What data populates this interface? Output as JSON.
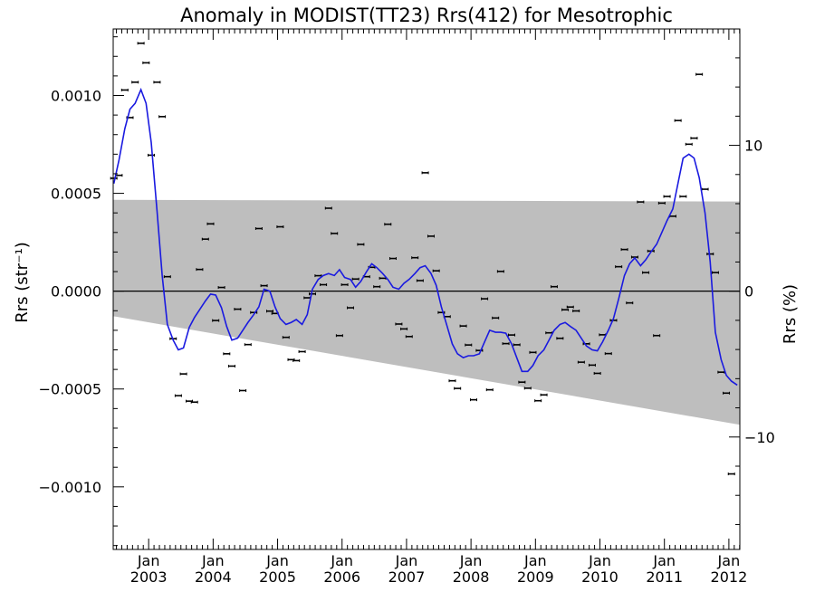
{
  "chart_data": {
    "type": "scatter",
    "title": "Anomaly in MODIST(TT23) Rrs(412) for Mesotrophic",
    "ylabel_left": "Rrs (str⁻¹)",
    "ylabel_right": "Rrs (%)",
    "xlim": [
      2002.45,
      2012.17
    ],
    "ylim": [
      -0.00132,
      0.00134
    ],
    "y2lim": [
      -17.71,
      17.98
    ],
    "grid": false,
    "zero_line": 0,
    "x_ticks": [
      {
        "x": 2003.0,
        "line1": "Jan",
        "line2": "2003"
      },
      {
        "x": 2004.0,
        "line1": "Jan",
        "line2": "2004"
      },
      {
        "x": 2005.0,
        "line1": "Jan",
        "line2": "2005"
      },
      {
        "x": 2006.0,
        "line1": "Jan",
        "line2": "2006"
      },
      {
        "x": 2007.0,
        "line1": "Jan",
        "line2": "2007"
      },
      {
        "x": 2008.0,
        "line1": "Jan",
        "line2": "2008"
      },
      {
        "x": 2009.0,
        "line1": "Jan",
        "line2": "2009"
      },
      {
        "x": 2010.0,
        "line1": "Jan",
        "line2": "2010"
      },
      {
        "x": 2011.0,
        "line1": "Jan",
        "line2": "2011"
      },
      {
        "x": 2012.0,
        "line1": "Jan",
        "line2": "2012"
      }
    ],
    "y_ticks": [
      {
        "v": 0.001,
        "label": "0.0010"
      },
      {
        "v": 0.0005,
        "label": "0.0005"
      },
      {
        "v": 0.0,
        "label": "0.0000"
      },
      {
        "v": -0.0005,
        "label": "−0.0005"
      },
      {
        "v": -0.001,
        "label": "−0.0010"
      }
    ],
    "y2_ticks": [
      {
        "v": 10,
        "label": "10"
      },
      {
        "v": 0,
        "label": "0"
      },
      {
        "v": -10,
        "label": "−10"
      }
    ],
    "band": {
      "upper": [
        [
          2002.45,
          0.000467
        ],
        [
          2012.17,
          0.000458
        ]
      ],
      "lower": [
        [
          2002.45,
          -0.000128
        ],
        [
          2012.17,
          -0.000683
        ]
      ],
      "color": "#bebebe"
    },
    "series": [
      {
        "type": "scatter",
        "color": "#000000",
        "error": 6e-06,
        "points": [
          [
            2002.46,
            0.000577
          ],
          [
            2002.54,
            0.000592
          ],
          [
            2002.63,
            0.001028
          ],
          [
            2002.71,
            0.000887
          ],
          [
            2002.79,
            0.001068
          ],
          [
            2002.88,
            0.001267
          ],
          [
            2002.96,
            0.001167
          ],
          [
            2003.04,
            0.000695
          ],
          [
            2003.13,
            0.001068
          ],
          [
            2003.21,
            0.000892
          ],
          [
            2003.29,
            7.4e-05
          ],
          [
            2003.38,
            -0.000243
          ],
          [
            2003.46,
            -0.000534
          ],
          [
            2003.54,
            -0.000423
          ],
          [
            2003.63,
            -0.000562
          ],
          [
            2003.71,
            -0.000567
          ],
          [
            2003.79,
            0.000111
          ],
          [
            2003.88,
            0.000266
          ],
          [
            2003.96,
            0.000344
          ],
          [
            2004.04,
            -0.00015
          ],
          [
            2004.13,
            1.9e-05
          ],
          [
            2004.21,
            -0.00032
          ],
          [
            2004.29,
            -0.000383
          ],
          [
            2004.38,
            -9.2e-05
          ],
          [
            2004.46,
            -0.000508
          ],
          [
            2004.54,
            -0.000273
          ],
          [
            2004.63,
            -0.000109
          ],
          [
            2004.71,
            0.00032
          ],
          [
            2004.79,
            2.8e-05
          ],
          [
            2004.88,
            -0.000102
          ],
          [
            2004.96,
            -0.000114
          ],
          [
            2005.04,
            0.000329
          ],
          [
            2005.13,
            -0.000236
          ],
          [
            2005.21,
            -0.00035
          ],
          [
            2005.29,
            -0.000355
          ],
          [
            2005.38,
            -0.000309
          ],
          [
            2005.46,
            -3.4e-05
          ],
          [
            2005.54,
            -1.4e-05
          ],
          [
            2005.63,
            7.9e-05
          ],
          [
            2005.71,
            3.3e-05
          ],
          [
            2005.79,
            0.000424
          ],
          [
            2005.88,
            0.000295
          ],
          [
            2005.96,
            -0.000227
          ],
          [
            2006.04,
            3.3e-05
          ],
          [
            2006.13,
            -8.5e-05
          ],
          [
            2006.21,
            6.2e-05
          ],
          [
            2006.29,
            0.000239
          ],
          [
            2006.38,
            7.4e-05
          ],
          [
            2006.46,
            0.000122
          ],
          [
            2006.54,
            2.3e-05
          ],
          [
            2006.63,
            6.6e-05
          ],
          [
            2006.71,
            0.000342
          ],
          [
            2006.79,
            0.000167
          ],
          [
            2006.88,
            -0.000168
          ],
          [
            2006.96,
            -0.000193
          ],
          [
            2007.04,
            -0.000232
          ],
          [
            2007.13,
            0.000171
          ],
          [
            2007.21,
            5.4e-05
          ],
          [
            2007.29,
            0.000605
          ],
          [
            2007.38,
            0.000281
          ],
          [
            2007.46,
            0.000104
          ],
          [
            2007.54,
            -0.000109
          ],
          [
            2007.63,
            -0.00013
          ],
          [
            2007.71,
            -0.000458
          ],
          [
            2007.79,
            -0.000497
          ],
          [
            2007.88,
            -0.000178
          ],
          [
            2007.96,
            -0.000275
          ],
          [
            2008.04,
            -0.000555
          ],
          [
            2008.13,
            -0.000303
          ],
          [
            2008.21,
            -3.9e-05
          ],
          [
            2008.29,
            -0.000504
          ],
          [
            2008.38,
            -0.000137
          ],
          [
            2008.46,
            0.000101
          ],
          [
            2008.54,
            -0.000268
          ],
          [
            2008.63,
            -0.000224
          ],
          [
            2008.71,
            -0.000274
          ],
          [
            2008.79,
            -0.000465
          ],
          [
            2008.88,
            -0.000496
          ],
          [
            2008.96,
            -0.000313
          ],
          [
            2009.04,
            -0.00056
          ],
          [
            2009.13,
            -0.00053
          ],
          [
            2009.21,
            -0.000213
          ],
          [
            2009.29,
            2.3e-05
          ],
          [
            2009.38,
            -0.000241
          ],
          [
            2009.46,
            -9.5e-05
          ],
          [
            2009.54,
            -8.1e-05
          ],
          [
            2009.63,
            -0.000101
          ],
          [
            2009.71,
            -0.000363
          ],
          [
            2009.79,
            -0.000269
          ],
          [
            2009.88,
            -0.000378
          ],
          [
            2009.96,
            -0.00042
          ],
          [
            2010.04,
            -0.000223
          ],
          [
            2010.13,
            -0.000319
          ],
          [
            2010.21,
            -0.000149
          ],
          [
            2010.29,
            0.000125
          ],
          [
            2010.38,
            0.000213
          ],
          [
            2010.46,
            -6e-05
          ],
          [
            2010.54,
            0.000174
          ],
          [
            2010.63,
            0.000456
          ],
          [
            2010.71,
            9.5e-05
          ],
          [
            2010.79,
            0.000205
          ],
          [
            2010.88,
            -0.000227
          ],
          [
            2010.96,
            0.00045
          ],
          [
            2011.04,
            0.000484
          ],
          [
            2011.13,
            0.000383
          ],
          [
            2011.21,
            0.000872
          ],
          [
            2011.29,
            0.000484
          ],
          [
            2011.38,
            0.000751
          ],
          [
            2011.46,
            0.000782
          ],
          [
            2011.54,
            0.001108
          ],
          [
            2011.63,
            0.000521
          ],
          [
            2011.71,
            0.00019
          ],
          [
            2011.79,
            9.5e-05
          ],
          [
            2011.88,
            -0.000414
          ],
          [
            2011.96,
            -0.000521
          ],
          [
            2012.04,
            -0.000934
          ]
        ]
      },
      {
        "type": "line",
        "color": "#1a1ae0",
        "points": [
          [
            2002.46,
            0.00055
          ],
          [
            2002.54,
            0.00067
          ],
          [
            2002.63,
            0.00083
          ],
          [
            2002.71,
            0.00093
          ],
          [
            2002.79,
            0.00096
          ],
          [
            2002.88,
            0.00103
          ],
          [
            2002.96,
            0.00096
          ],
          [
            2003.04,
            0.00076
          ],
          [
            2003.13,
            0.00041
          ],
          [
            2003.21,
            8e-05
          ],
          [
            2003.29,
            -0.00017
          ],
          [
            2003.38,
            -0.00025
          ],
          [
            2003.46,
            -0.0003
          ],
          [
            2003.54,
            -0.00029
          ],
          [
            2003.63,
            -0.000185
          ],
          [
            2003.71,
            -0.000135
          ],
          [
            2003.79,
            -9.5e-05
          ],
          [
            2003.88,
            -5e-05
          ],
          [
            2003.96,
            -1.5e-05
          ],
          [
            2004.04,
            -2e-05
          ],
          [
            2004.13,
            -8.5e-05
          ],
          [
            2004.21,
            -0.00018
          ],
          [
            2004.29,
            -0.00025
          ],
          [
            2004.38,
            -0.00024
          ],
          [
            2004.46,
            -0.0002
          ],
          [
            2004.54,
            -0.00016
          ],
          [
            2004.63,
            -0.00012
          ],
          [
            2004.71,
            -8e-05
          ],
          [
            2004.79,
            1e-05
          ],
          [
            2004.88,
            0.0
          ],
          [
            2004.96,
            -8e-05
          ],
          [
            2005.04,
            -0.00014
          ],
          [
            2005.13,
            -0.00017
          ],
          [
            2005.21,
            -0.00016
          ],
          [
            2005.29,
            -0.000145
          ],
          [
            2005.38,
            -0.00017
          ],
          [
            2005.46,
            -0.00012
          ],
          [
            2005.54,
            1e-05
          ],
          [
            2005.63,
            6e-05
          ],
          [
            2005.71,
            8e-05
          ],
          [
            2005.79,
            9e-05
          ],
          [
            2005.88,
            8e-05
          ],
          [
            2005.96,
            0.00011
          ],
          [
            2006.04,
            7e-05
          ],
          [
            2006.13,
            6e-05
          ],
          [
            2006.21,
            2e-05
          ],
          [
            2006.29,
            5e-05
          ],
          [
            2006.38,
            0.0001
          ],
          [
            2006.46,
            0.00014
          ],
          [
            2006.54,
            0.00012
          ],
          [
            2006.63,
            9e-05
          ],
          [
            2006.71,
            6e-05
          ],
          [
            2006.79,
            2e-05
          ],
          [
            2006.88,
            1e-05
          ],
          [
            2006.96,
            4e-05
          ],
          [
            2007.04,
            6e-05
          ],
          [
            2007.13,
            9e-05
          ],
          [
            2007.21,
            0.00012
          ],
          [
            2007.29,
            0.00013
          ],
          [
            2007.38,
            9e-05
          ],
          [
            2007.46,
            3e-05
          ],
          [
            2007.54,
            -8e-05
          ],
          [
            2007.63,
            -0.00018
          ],
          [
            2007.71,
            -0.00027
          ],
          [
            2007.79,
            -0.00032
          ],
          [
            2007.88,
            -0.00034
          ],
          [
            2007.96,
            -0.00033
          ],
          [
            2008.04,
            -0.00033
          ],
          [
            2008.13,
            -0.00032
          ],
          [
            2008.21,
            -0.00026
          ],
          [
            2008.29,
            -0.0002
          ],
          [
            2008.38,
            -0.00021
          ],
          [
            2008.46,
            -0.00021
          ],
          [
            2008.54,
            -0.000215
          ],
          [
            2008.63,
            -0.00027
          ],
          [
            2008.71,
            -0.00034
          ],
          [
            2008.79,
            -0.00041
          ],
          [
            2008.88,
            -0.00041
          ],
          [
            2008.96,
            -0.00038
          ],
          [
            2009.04,
            -0.00033
          ],
          [
            2009.13,
            -0.0003
          ],
          [
            2009.21,
            -0.00025
          ],
          [
            2009.29,
            -0.0002
          ],
          [
            2009.38,
            -0.00017
          ],
          [
            2009.46,
            -0.00016
          ],
          [
            2009.54,
            -0.00018
          ],
          [
            2009.63,
            -0.0002
          ],
          [
            2009.71,
            -0.00024
          ],
          [
            2009.79,
            -0.00028
          ],
          [
            2009.88,
            -0.0003
          ],
          [
            2009.96,
            -0.000305
          ],
          [
            2010.04,
            -0.00026
          ],
          [
            2010.13,
            -0.0002
          ],
          [
            2010.21,
            -0.00014
          ],
          [
            2010.29,
            -4e-05
          ],
          [
            2010.38,
            8e-05
          ],
          [
            2010.46,
            0.00014
          ],
          [
            2010.54,
            0.00017
          ],
          [
            2010.63,
            0.00013
          ],
          [
            2010.71,
            0.00016
          ],
          [
            2010.79,
            0.0002
          ],
          [
            2010.88,
            0.00024
          ],
          [
            2010.96,
            0.0003
          ],
          [
            2011.04,
            0.00036
          ],
          [
            2011.13,
            0.00042
          ],
          [
            2011.21,
            0.00055
          ],
          [
            2011.29,
            0.00068
          ],
          [
            2011.38,
            0.0007
          ],
          [
            2011.46,
            0.00068
          ],
          [
            2011.54,
            0.00058
          ],
          [
            2011.63,
            0.0004
          ],
          [
            2011.71,
            0.00015
          ],
          [
            2011.79,
            -0.00021
          ],
          [
            2011.88,
            -0.00035
          ],
          [
            2011.96,
            -0.00043
          ],
          [
            2012.04,
            -0.00046
          ],
          [
            2012.13,
            -0.00048
          ]
        ]
      }
    ]
  }
}
